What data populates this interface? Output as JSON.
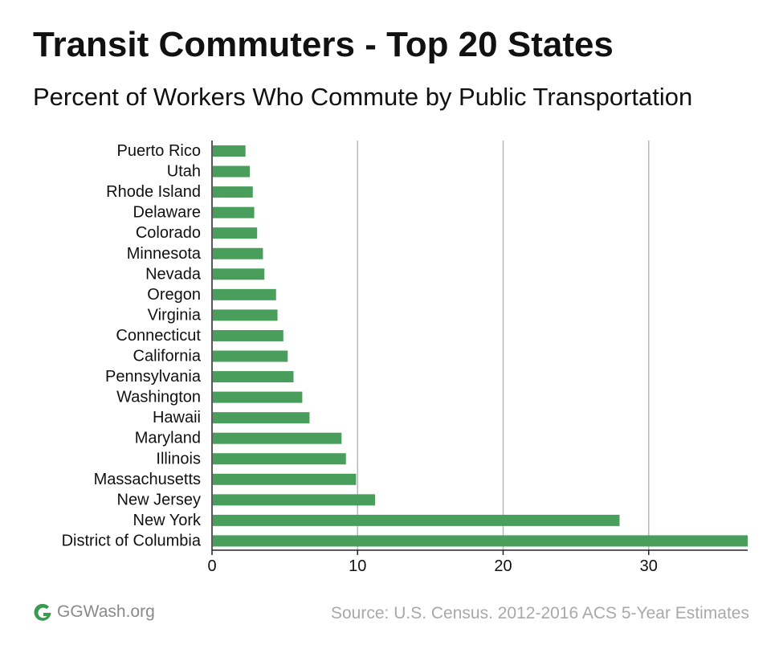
{
  "header": {
    "title": "Transit Commuters - Top 20 States",
    "subtitle": "Percent of Workers Who Commute by Public Transportation"
  },
  "footer": {
    "logo_text": "GGWash.org",
    "source": "Source: U.S. Census. 2012-2016 ACS 5-Year Estimates"
  },
  "colors": {
    "bar": "#4a9e5c",
    "grid": "#b8b8b8",
    "logo": "#3a9a4f"
  },
  "icons": {
    "logo": "ggwash-logo-icon"
  },
  "chart_data": {
    "type": "bar",
    "orientation": "horizontal",
    "categories": [
      "Puerto Rico",
      "Utah",
      "Rhode Island",
      "Delaware",
      "Colorado",
      "Minnesota",
      "Nevada",
      "Oregon",
      "Virginia",
      "Connecticut",
      "California",
      "Pennsylvania",
      "Washington",
      "Hawaii",
      "Maryland",
      "Illinois",
      "Massachusetts",
      "New Jersey",
      "New York",
      "District of Columbia"
    ],
    "values": [
      2.3,
      2.6,
      2.8,
      2.9,
      3.1,
      3.5,
      3.6,
      4.4,
      4.5,
      4.9,
      5.2,
      5.6,
      6.2,
      6.7,
      8.9,
      9.2,
      9.9,
      11.2,
      28.0,
      36.8
    ],
    "xlim": [
      0,
      36.8
    ],
    "xticks": [
      0,
      10,
      20,
      30
    ],
    "grid": true,
    "title": "Transit Commuters - Top 20 States",
    "xlabel": "",
    "ylabel": ""
  }
}
